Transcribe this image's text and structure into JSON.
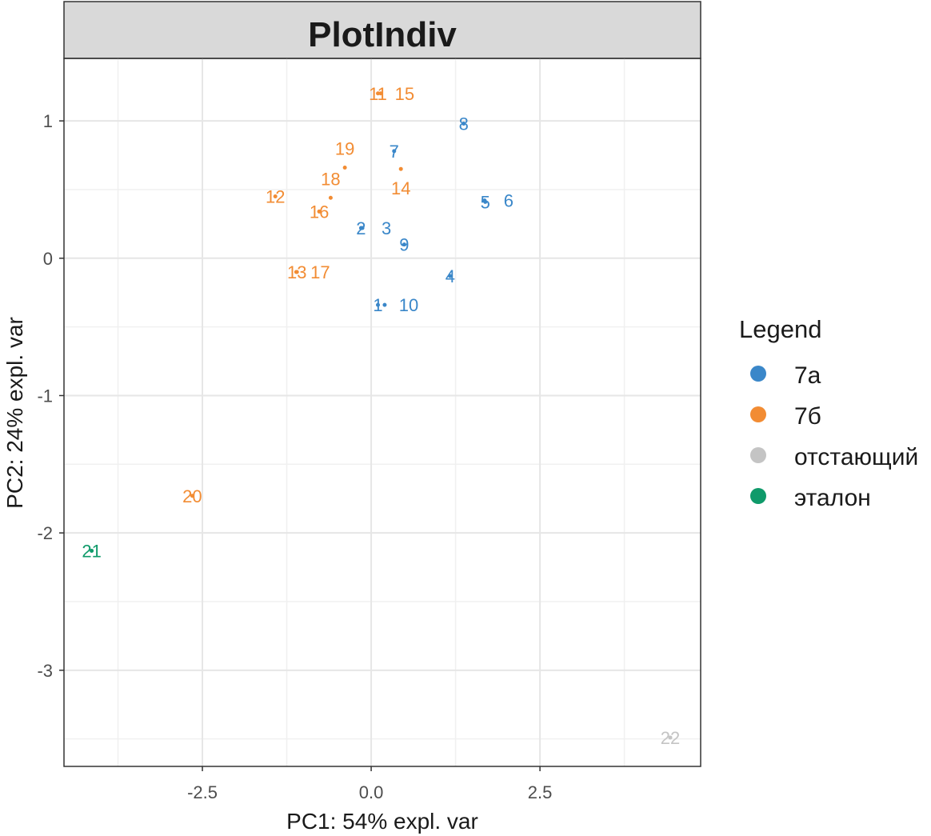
{
  "chart_data": {
    "type": "scatter",
    "title": "PlotIndiv",
    "xlabel": "PC1: 54% expl. var",
    "ylabel": "PC2: 24% expl. var",
    "xlim": [
      -4.55,
      4.88
    ],
    "ylim": [
      -3.7,
      1.455
    ],
    "xticks": [
      -2.5,
      0.0,
      2.5
    ],
    "xtick_labels": [
      "-2.5",
      "0.0",
      "2.5"
    ],
    "yticks": [
      1,
      0,
      -1,
      -2,
      -3
    ],
    "ytick_labels": [
      "1",
      "0",
      "-1",
      "-2",
      "-3"
    ],
    "grid": true,
    "legend": {
      "title": "Legend",
      "placement": "right",
      "entries": [
        {
          "label": "7а",
          "color": "#3a87c9"
        },
        {
          "label": "7б",
          "color": "#f28c33"
        },
        {
          "label": "отстающий",
          "color": "#c4c4c4"
        },
        {
          "label": "эталон",
          "color": "#0f9a6a"
        }
      ]
    },
    "points": [
      {
        "label": "1",
        "group": 0,
        "x": 0.1,
        "y": -0.34
      },
      {
        "label": "2",
        "group": 0,
        "x": -0.15,
        "y": 0.22
      },
      {
        "label": "3",
        "group": 0,
        "x": -0.13,
        "y": 0.22
      },
      {
        "label": "4",
        "group": 0,
        "x": 1.17,
        "y": -0.13
      },
      {
        "label": "5",
        "group": 0,
        "x": 1.69,
        "y": 0.41
      },
      {
        "label": "6",
        "group": 0,
        "x": 1.68,
        "y": 0.42
      },
      {
        "label": "7",
        "group": 0,
        "x": 0.34,
        "y": 0.78
      },
      {
        "label": "8",
        "group": 0,
        "x": 1.37,
        "y": 0.98
      },
      {
        "label": "9",
        "group": 0,
        "x": 0.49,
        "y": 0.1
      },
      {
        "label": "10",
        "group": 0,
        "x": 0.2,
        "y": -0.34
      },
      {
        "label": "11",
        "group": 1,
        "x": 0.1,
        "y": 1.2
      },
      {
        "label": "12",
        "group": 1,
        "x": -1.42,
        "y": 0.45
      },
      {
        "label": "13",
        "group": 1,
        "x": -1.1,
        "y": -0.1
      },
      {
        "label": "14",
        "group": 1,
        "x": 0.44,
        "y": 0.65
      },
      {
        "label": "15",
        "group": 1,
        "x": 0.14,
        "y": 1.2
      },
      {
        "label": "16",
        "group": 1,
        "x": -0.77,
        "y": 0.34
      },
      {
        "label": "17",
        "group": 1,
        "x": -1.11,
        "y": -0.1
      },
      {
        "label": "18",
        "group": 1,
        "x": -0.6,
        "y": 0.44
      },
      {
        "label": "19",
        "group": 1,
        "x": -0.39,
        "y": 0.66
      },
      {
        "label": "20",
        "group": 1,
        "x": -2.65,
        "y": -1.73
      },
      {
        "label": "21",
        "group": 3,
        "x": -4.14,
        "y": -2.13
      },
      {
        "label": "22",
        "group": 2,
        "x": 4.43,
        "y": -3.49
      }
    ]
  }
}
